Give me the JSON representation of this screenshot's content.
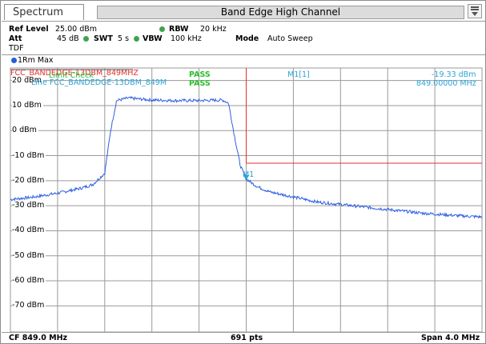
{
  "header": {
    "tab_label": "Spectrum",
    "title": "Band Edge High Channel"
  },
  "params": {
    "ref_level_label": "Ref Level",
    "ref_level_value": "25.00 dBm",
    "att_label": "Att",
    "att_value": "45 dB",
    "swt_label": "SWT",
    "swt_value": "5 s",
    "rbw_label": "RBW",
    "rbw_value": "20 kHz",
    "vbw_label": "VBW",
    "vbw_value": "100 kHz",
    "mode_label": "Mode",
    "mode_value": "Auto Sweep",
    "tdf_label": "TDF"
  },
  "trace": {
    "label": "1Rm Max"
  },
  "limits": {
    "line_name": "FCC_BANDEDGE-13DBM_849MHZ",
    "line_result": "PASS",
    "check_label": "Limit Check",
    "check_result": "PASS",
    "line2_name": "Line FCC_BANDEDGE-13DBM_849M",
    "line2_result": "PASS"
  },
  "marker": {
    "name": "M1[1]",
    "level": "-19.33 dBm",
    "freq": "849.00000 MHz",
    "label": "M1"
  },
  "footer": {
    "cf": "CF 849.0 MHz",
    "pts": "691 pts",
    "span": "Span 4.0 MHz"
  },
  "colors": {
    "trace": "#2f5fe0",
    "limit": "#e03030",
    "pass": "#2dbd2d",
    "marker": "#2aa3d8",
    "grid": "#9a9a9a"
  },
  "chart_data": {
    "type": "line",
    "xlabel": "",
    "ylabel": "",
    "x_unit": "MHz",
    "y_unit": "dBm",
    "xlim": [
      847.0,
      851.0
    ],
    "ylim": [
      -75,
      25
    ],
    "y_ticks": [
      {
        "value": 20,
        "label": "20 dBm"
      },
      {
        "value": 10,
        "label": "10 dBm"
      },
      {
        "value": 0,
        "label": "0 dBm"
      },
      {
        "value": -10,
        "label": "-10 dBm"
      },
      {
        "value": -20,
        "label": "-20 dBm"
      },
      {
        "value": -30,
        "label": "-30 dBm"
      },
      {
        "value": -40,
        "label": "-40 dBm"
      },
      {
        "value": -50,
        "label": "-50 dBm"
      },
      {
        "value": -60,
        "label": "-60 dBm"
      },
      {
        "value": -70,
        "label": "-70 dBm"
      }
    ],
    "x_divisions": 10,
    "grid": true,
    "series": [
      {
        "name": "1Rm Max",
        "x": [
          847.0,
          847.2,
          847.4,
          847.6,
          847.7,
          847.8,
          847.85,
          847.9,
          848.0,
          848.2,
          848.4,
          848.6,
          848.8,
          848.85,
          848.9,
          848.95,
          849.0,
          849.05,
          849.1,
          849.2,
          849.4,
          849.6,
          849.8,
          850.0,
          850.2,
          850.5,
          850.8,
          851.0
        ],
        "y": [
          -27.5,
          -26.5,
          -25.0,
          -23.0,
          -21.5,
          -17.0,
          0.0,
          12.0,
          13.0,
          12.2,
          12.0,
          12.0,
          12.2,
          11.0,
          -2.0,
          -14.0,
          -19.3,
          -21.0,
          -22.5,
          -24.5,
          -26.5,
          -28.5,
          -29.5,
          -30.5,
          -31.5,
          -33.0,
          -34.0,
          -34.5
        ]
      }
    ],
    "limit_line": {
      "x_from": 849.0,
      "x_to": 851.0,
      "y": -13.0
    },
    "marker": {
      "x": 849.0,
      "y": -19.33
    }
  }
}
